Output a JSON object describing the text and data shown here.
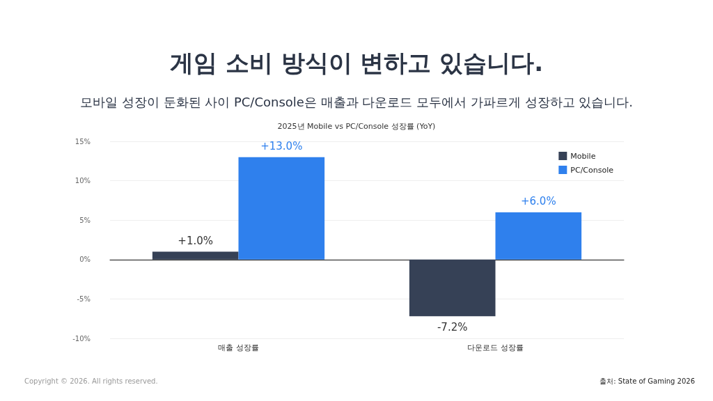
{
  "chart_data": {
    "type": "bar",
    "title": "게임 소비 방식이 변하고 있습니다.",
    "subtitle": "모바일 성장이 둔화된 사이 PC/Console은 매출과 다운로드 모두에서 가파르게 성장하고 있습니다.",
    "annotations": [
      "2025년 Mobile vs PC/Console 성장률 (YoY)",
      "Copyright © 2026. All rights reserved.",
      "출처: State of Gaming 2026"
    ],
    "categories": [
      "매출 성장률",
      "다운로드 성장률"
    ],
    "series": [
      {
        "name": "Mobile",
        "color": "#364156",
        "values": [
          1.0,
          -7.2
        ],
        "value_labels": [
          "+1.0%",
          "-7.2%"
        ]
      },
      {
        "name": "PC/Console",
        "color": "#2f80ed",
        "values": [
          13.0,
          6.0
        ],
        "value_labels": [
          "+13.0%",
          "+6.0%"
        ]
      }
    ],
    "ylim": [
      -10,
      15
    ],
    "yticks": [
      {
        "value": -10,
        "label": "-10%"
      },
      {
        "value": -5,
        "label": "-5%"
      },
      {
        "value": 0,
        "label": "0%"
      },
      {
        "value": 5,
        "label": "5%"
      },
      {
        "value": 10,
        "label": "10%"
      },
      {
        "value": 15,
        "label": "15%"
      }
    ],
    "grid": "y",
    "legend": "top right"
  }
}
